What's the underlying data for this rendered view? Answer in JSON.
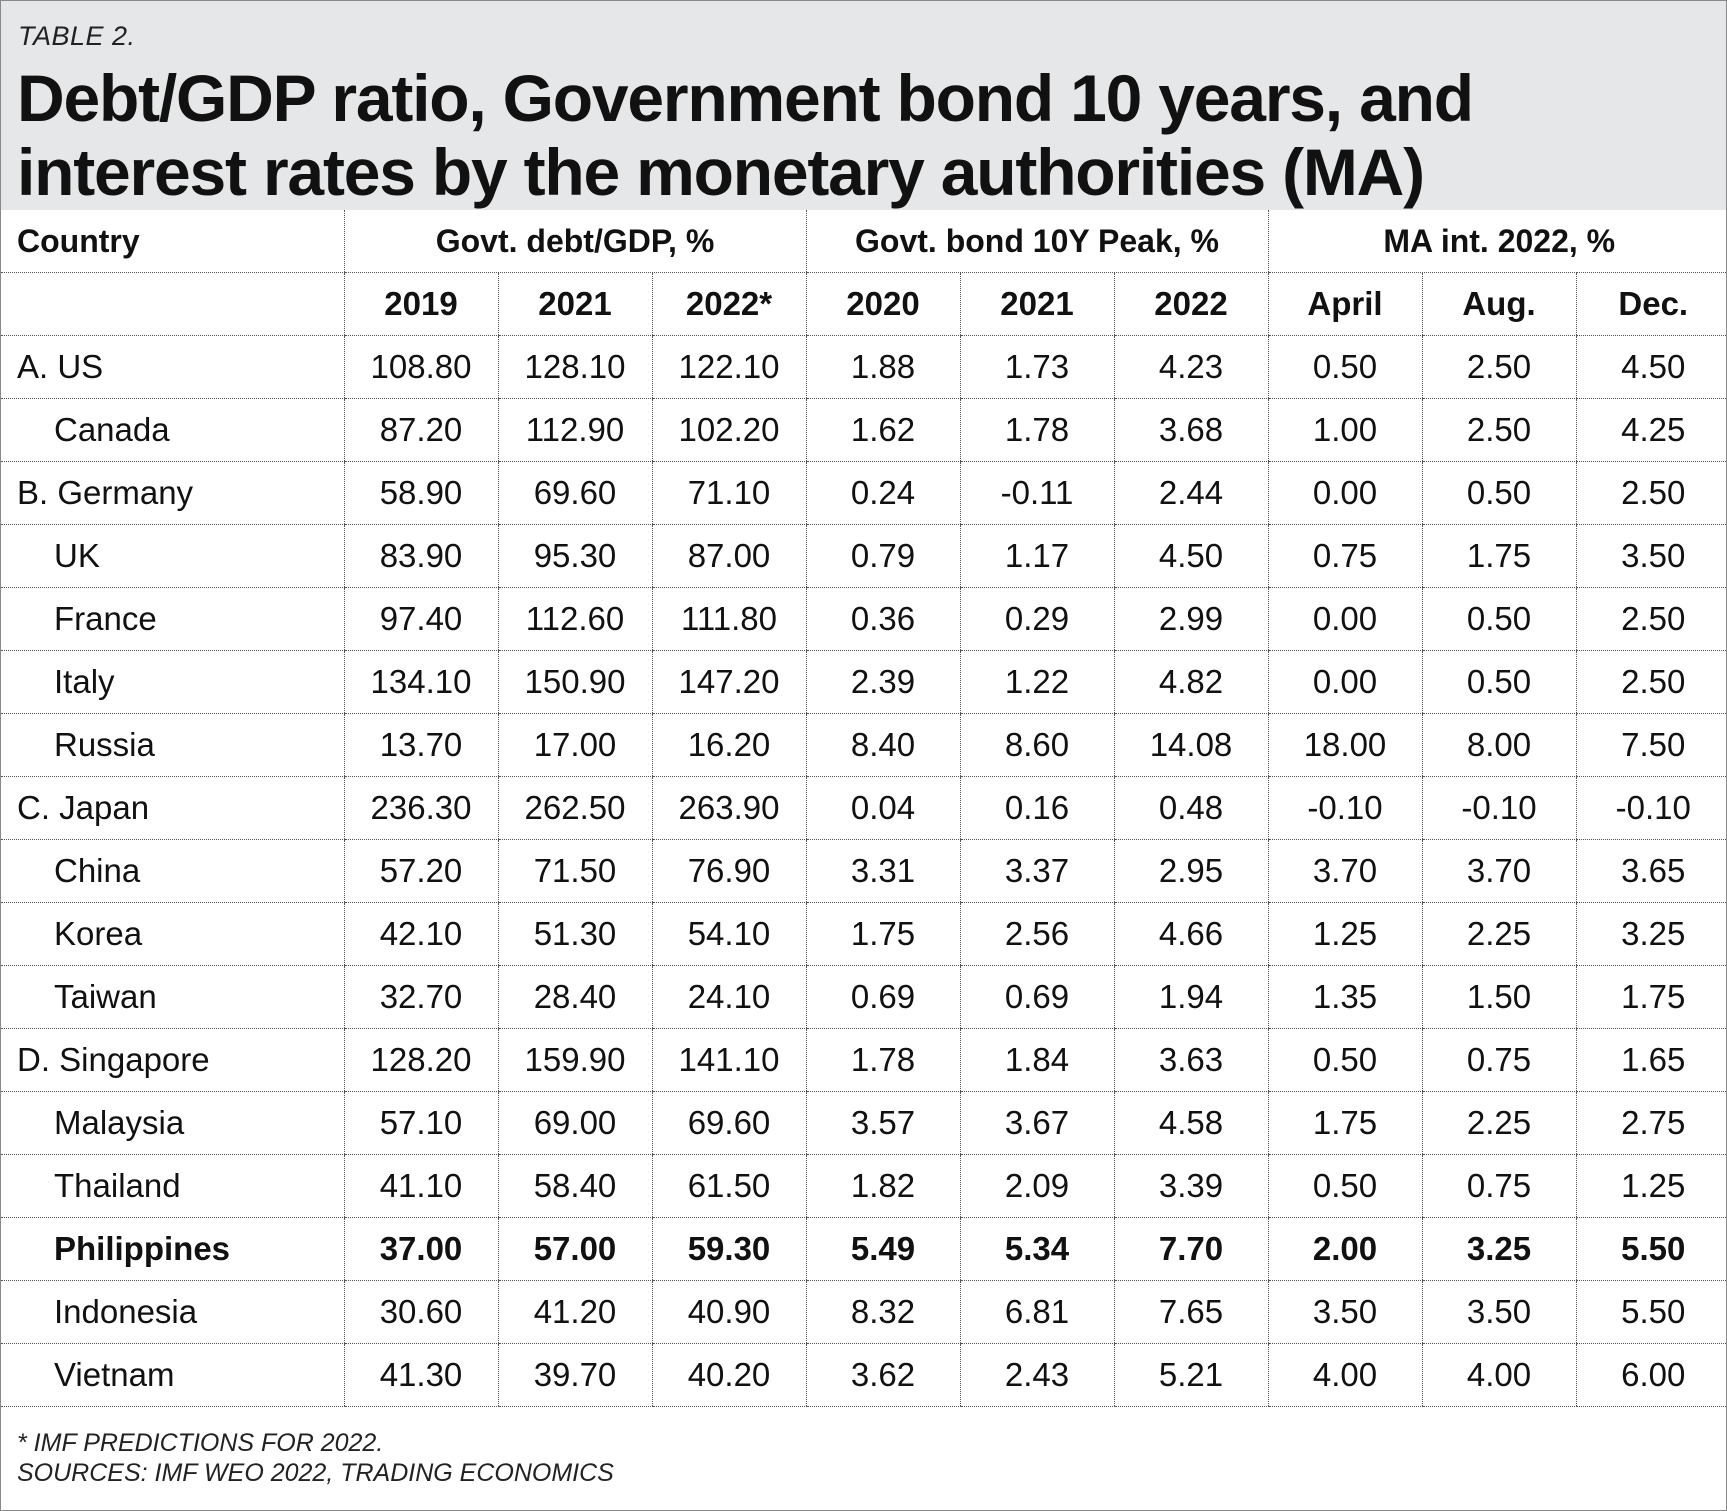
{
  "table_label": "TABLE 2.",
  "title": "Debt/GDP ratio, Government bond 10 years, and interest rates by the monetary authorities (MA)",
  "columns": {
    "country": "Country",
    "groups": [
      "Govt. debt/GDP, %",
      "Govt. bond 10Y Peak, %",
      "MA int. 2022, %"
    ],
    "sub": [
      "2019",
      "2021",
      "2022*",
      "2020",
      "2021",
      "2022",
      "April",
      "Aug.",
      "Dec."
    ]
  },
  "rows": [
    {
      "country": "A. US",
      "indent": 0,
      "bold": false,
      "values": [
        "108.80",
        "128.10",
        "122.10",
        "1.88",
        "1.73",
        "4.23",
        "0.50",
        "2.50",
        "4.50"
      ]
    },
    {
      "country": "Canada",
      "indent": 1,
      "bold": false,
      "values": [
        "87.20",
        "112.90",
        "102.20",
        "1.62",
        "1.78",
        "3.68",
        "1.00",
        "2.50",
        "4.25"
      ]
    },
    {
      "country": "B. Germany",
      "indent": 0,
      "bold": false,
      "values": [
        "58.90",
        "69.60",
        "71.10",
        "0.24",
        "-0.11",
        "2.44",
        "0.00",
        "0.50",
        "2.50"
      ]
    },
    {
      "country": "UK",
      "indent": 1,
      "bold": false,
      "values": [
        "83.90",
        "95.30",
        "87.00",
        "0.79",
        "1.17",
        "4.50",
        "0.75",
        "1.75",
        "3.50"
      ]
    },
    {
      "country": "France",
      "indent": 1,
      "bold": false,
      "values": [
        "97.40",
        "112.60",
        "111.80",
        "0.36",
        "0.29",
        "2.99",
        "0.00",
        "0.50",
        "2.50"
      ]
    },
    {
      "country": "Italy",
      "indent": 1,
      "bold": false,
      "values": [
        "134.10",
        "150.90",
        "147.20",
        "2.39",
        "1.22",
        "4.82",
        "0.00",
        "0.50",
        "2.50"
      ]
    },
    {
      "country": "Russia",
      "indent": 1,
      "bold": false,
      "values": [
        "13.70",
        "17.00",
        "16.20",
        "8.40",
        "8.60",
        "14.08",
        "18.00",
        "8.00",
        "7.50"
      ]
    },
    {
      "country": "C. Japan",
      "indent": 0,
      "bold": false,
      "values": [
        "236.30",
        "262.50",
        "263.90",
        "0.04",
        "0.16",
        "0.48",
        "-0.10",
        "-0.10",
        "-0.10"
      ]
    },
    {
      "country": "China",
      "indent": 1,
      "bold": false,
      "values": [
        "57.20",
        "71.50",
        "76.90",
        "3.31",
        "3.37",
        "2.95",
        "3.70",
        "3.70",
        "3.65"
      ]
    },
    {
      "country": "Korea",
      "indent": 1,
      "bold": false,
      "values": [
        "42.10",
        "51.30",
        "54.10",
        "1.75",
        "2.56",
        "4.66",
        "1.25",
        "2.25",
        "3.25"
      ]
    },
    {
      "country": "Taiwan",
      "indent": 1,
      "bold": false,
      "values": [
        "32.70",
        "28.40",
        "24.10",
        "0.69",
        "0.69",
        "1.94",
        "1.35",
        "1.50",
        "1.75"
      ]
    },
    {
      "country": "D. Singapore",
      "indent": 0,
      "bold": false,
      "values": [
        "128.20",
        "159.90",
        "141.10",
        "1.78",
        "1.84",
        "3.63",
        "0.50",
        "0.75",
        "1.65"
      ]
    },
    {
      "country": "Malaysia",
      "indent": 1,
      "bold": false,
      "values": [
        "57.10",
        "69.00",
        "69.60",
        "3.57",
        "3.67",
        "4.58",
        "1.75",
        "2.25",
        "2.75"
      ]
    },
    {
      "country": "Thailand",
      "indent": 1,
      "bold": false,
      "values": [
        "41.10",
        "58.40",
        "61.50",
        "1.82",
        "2.09",
        "3.39",
        "0.50",
        "0.75",
        "1.25"
      ]
    },
    {
      "country": "Philippines",
      "indent": 1,
      "bold": true,
      "values": [
        "37.00",
        "57.00",
        "59.30",
        "5.49",
        "5.34",
        "7.70",
        "2.00",
        "3.25",
        "5.50"
      ]
    },
    {
      "country": "Indonesia",
      "indent": 1,
      "bold": false,
      "values": [
        "30.60",
        "41.20",
        "40.90",
        "8.32",
        "6.81",
        "7.65",
        "3.50",
        "3.50",
        "5.50"
      ]
    },
    {
      "country": "Vietnam",
      "indent": 1,
      "bold": false,
      "values": [
        "41.30",
        "39.70",
        "40.20",
        "3.62",
        "2.43",
        "5.21",
        "4.00",
        "4.00",
        "6.00"
      ]
    }
  ],
  "footnotes": [
    "* IMF PREDICTIONS FOR 2022.",
    "SOURCES: IMF WEO 2022, TRADING ECONOMICS"
  ]
}
